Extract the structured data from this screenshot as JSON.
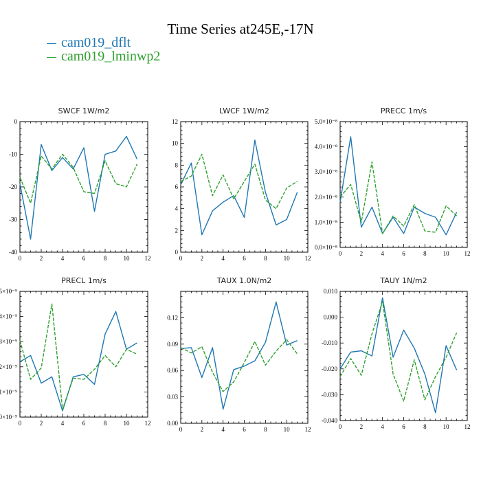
{
  "figure": {
    "title": "Time Series at245E,-17N",
    "legend": [
      {
        "label": "cam019_dflt",
        "color": "#1f77b4"
      },
      {
        "label": "cam019_lminwp2",
        "color": "#2ca02c"
      }
    ]
  },
  "chart_data": [
    {
      "type": "line",
      "title": "SWCF   1W/m2",
      "x": [
        0,
        1,
        2,
        3,
        4,
        5,
        6,
        7,
        8,
        9,
        10,
        11
      ],
      "xlim": [
        0,
        12
      ],
      "xticks": [
        0,
        2,
        4,
        6,
        8,
        10,
        12
      ],
      "ylim": [
        -40,
        0
      ],
      "yticks": [
        -40,
        -30,
        -20,
        -10,
        0
      ],
      "ytick_labels": [
        "-40",
        "-30",
        "-20",
        "-10",
        "0"
      ],
      "series": [
        {
          "name": "cam019_dflt",
          "values": [
            -19,
            -36,
            -7,
            -15,
            -11,
            -14.5,
            -8,
            -27.5,
            -10,
            -9,
            -4.5,
            -11.5
          ]
        },
        {
          "name": "cam019_lminwp2",
          "values": [
            -17,
            -25,
            -10.5,
            -14.5,
            -10,
            -14,
            -21.5,
            -22,
            -12,
            -19,
            -20,
            -13
          ]
        }
      ]
    },
    {
      "type": "line",
      "title": "LWCF   1W/m2",
      "x": [
        0,
        1,
        2,
        3,
        4,
        5,
        6,
        7,
        8,
        9,
        10,
        11
      ],
      "xlim": [
        0,
        12
      ],
      "xticks": [
        0,
        2,
        4,
        6,
        8,
        10,
        12
      ],
      "ylim": [
        0,
        12
      ],
      "yticks": [
        0,
        2,
        4,
        6,
        8,
        10,
        12
      ],
      "ytick_labels": [
        "0",
        "2",
        "4",
        "6",
        "8",
        "10",
        "12"
      ],
      "series": [
        {
          "name": "cam019_dflt",
          "values": [
            6.2,
            8.2,
            1.6,
            3.8,
            4.6,
            5.2,
            3.2,
            10.3,
            5.5,
            2.5,
            3.0,
            5.5
          ]
        },
        {
          "name": "cam019_lminwp2",
          "values": [
            6.5,
            7.0,
            9.0,
            5.2,
            7.1,
            4.9,
            6.5,
            8.1,
            4.8,
            4.0,
            5.9,
            6.5
          ]
        }
      ]
    },
    {
      "type": "line",
      "title": "PRECC   1m/s",
      "x": [
        0,
        1,
        2,
        3,
        4,
        5,
        6,
        7,
        8,
        9,
        10,
        11
      ],
      "xlim": [
        0,
        12
      ],
      "xticks": [
        0,
        2,
        4,
        6,
        8,
        10,
        12
      ],
      "ylim": [
        0,
        5
      ],
      "yticks": [
        0,
        1,
        2,
        3,
        4,
        5
      ],
      "ytick_labels": [
        "0.0×10⁻⁸",
        "1.0×10⁻⁸",
        "2.0×10⁻⁸",
        "3.0×10⁻⁸",
        "4.0×10⁻⁸",
        "5.0×10⁻⁸"
      ],
      "series": [
        {
          "name": "cam019_dflt",
          "values": [
            1.8,
            4.4,
            0.8,
            1.6,
            0.55,
            1.2,
            0.55,
            1.6,
            1.35,
            1.2,
            0.5,
            1.4
          ]
        },
        {
          "name": "cam019_lminwp2",
          "values": [
            2.0,
            2.5,
            1.0,
            3.4,
            0.55,
            1.25,
            0.85,
            1.7,
            0.65,
            0.6,
            1.65,
            1.25
          ]
        }
      ]
    },
    {
      "type": "line",
      "title": "PRECL   1m/s",
      "x": [
        0,
        1,
        2,
        3,
        4,
        5,
        6,
        7,
        8,
        9,
        10,
        11
      ],
      "xlim": [
        0,
        12
      ],
      "xticks": [
        0,
        2,
        4,
        6,
        8,
        10,
        12
      ],
      "ylim": [
        0,
        5
      ],
      "yticks": [
        0,
        1,
        2,
        3,
        4,
        5
      ],
      "ytick_labels": [
        "0×10⁻⁹",
        "1×10⁻⁹",
        "2×10⁻⁹",
        "3×10⁻⁹",
        "4×10⁻⁹",
        "5×10⁻⁹"
      ],
      "series": [
        {
          "name": "cam019_dflt",
          "values": [
            2.2,
            2.45,
            1.35,
            1.6,
            0.25,
            1.6,
            1.7,
            1.3,
            3.3,
            4.2,
            2.7,
            2.95
          ]
        },
        {
          "name": "cam019_lminwp2",
          "values": [
            3.05,
            1.5,
            1.95,
            4.5,
            0.3,
            1.55,
            1.5,
            1.9,
            2.45,
            2.0,
            2.7,
            2.5
          ]
        }
      ]
    },
    {
      "type": "line",
      "title": "TAUX   1.0N/m2",
      "x": [
        0,
        1,
        2,
        3,
        4,
        5,
        6,
        7,
        8,
        9,
        10,
        11
      ],
      "xlim": [
        0,
        12
      ],
      "xticks": [
        0,
        2,
        4,
        6,
        8,
        10,
        12
      ],
      "ylim": [
        0,
        0.15
      ],
      "yticks": [
        0,
        0.03,
        0.06,
        0.09,
        0.12
      ],
      "ytick_labels": [
        "0.00",
        "0.03",
        "0.06",
        "0.09",
        "0.12"
      ],
      "series": [
        {
          "name": "cam019_dflt",
          "values": [
            0.085,
            0.086,
            0.052,
            0.086,
            0.016,
            0.061,
            0.065,
            0.071,
            0.092,
            0.138,
            0.089,
            0.094
          ]
        },
        {
          "name": "cam019_lminwp2",
          "values": [
            0.086,
            0.08,
            0.087,
            0.058,
            0.036,
            0.047,
            0.069,
            0.093,
            0.066,
            0.082,
            0.095,
            0.079
          ]
        }
      ]
    },
    {
      "type": "line",
      "title": "TAUY   1N/m2",
      "x": [
        0,
        1,
        2,
        3,
        4,
        5,
        6,
        7,
        8,
        9,
        10,
        11
      ],
      "xlim": [
        0,
        12
      ],
      "xticks": [
        0,
        2,
        4,
        6,
        8,
        10,
        12
      ],
      "ylim": [
        -0.04,
        0.01
      ],
      "yticks": [
        -0.04,
        -0.03,
        -0.02,
        -0.01,
        0,
        0.01
      ],
      "ytick_labels": [
        "-0.040",
        "-0.030",
        "-0.020",
        "-0.010",
        "0.000",
        "0.010"
      ],
      "series": [
        {
          "name": "cam019_dflt",
          "values": [
            -0.02,
            -0.0135,
            -0.013,
            -0.015,
            0.0075,
            -0.0155,
            -0.005,
            -0.012,
            -0.022,
            -0.037,
            -0.011,
            -0.0205
          ]
        },
        {
          "name": "cam019_lminwp2",
          "values": [
            -0.023,
            -0.016,
            -0.0225,
            -0.0065,
            0.006,
            -0.022,
            -0.0325,
            -0.0165,
            -0.032,
            -0.023,
            -0.0155,
            -0.006
          ]
        }
      ]
    }
  ]
}
